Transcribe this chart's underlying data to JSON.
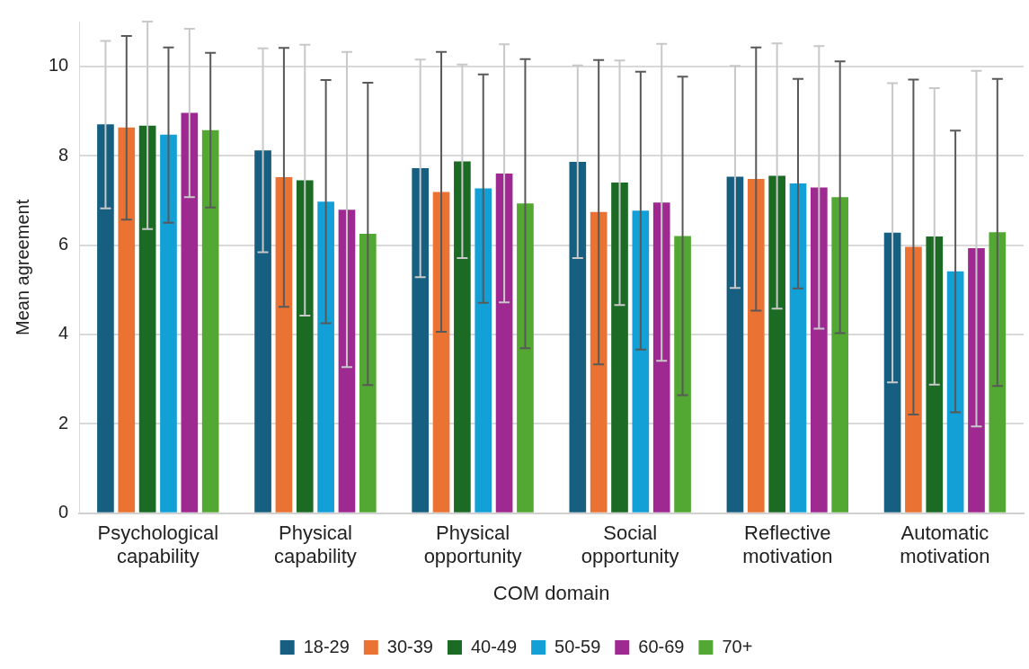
{
  "chart_data": {
    "type": "bar",
    "xlabel": "COM domain",
    "ylabel": "Mean agreement",
    "categories": [
      "Psychological capability",
      "Physical capability",
      "Physical opportunity",
      "Social opportunity",
      "Reflective motivation",
      "Automatic motivation"
    ],
    "ylim": [
      0,
      11
    ],
    "yticks": [
      0,
      2,
      4,
      6,
      8,
      10
    ],
    "grid": "y",
    "legend": "bottom",
    "series": [
      {
        "name": "18-29",
        "color": "#175f80",
        "values": [
          8.7,
          8.12,
          7.72,
          7.86,
          7.53,
          6.28
        ],
        "errors": [
          [
            6.82,
            10.57
          ],
          [
            5.84,
            10.4
          ],
          [
            5.28,
            10.15
          ],
          [
            5.71,
            10.02
          ],
          [
            5.04,
            10.01
          ],
          [
            2.93,
            9.62
          ]
        ]
      },
      {
        "name": "30-39",
        "color": "#ea7233",
        "values": [
          8.63,
          7.52,
          7.19,
          6.74,
          7.48,
          5.96
        ],
        "errors": [
          [
            6.57,
            10.68
          ],
          [
            4.62,
            10.41
          ],
          [
            4.06,
            10.32
          ],
          [
            3.33,
            10.14
          ],
          [
            4.53,
            10.42
          ],
          [
            2.21,
            9.7
          ]
        ]
      },
      {
        "name": "40-49",
        "color": "#1b6b24",
        "values": [
          8.67,
          7.45,
          7.87,
          7.4,
          7.55,
          6.19
        ],
        "errors": [
          [
            6.36,
            11.0
          ],
          [
            4.42,
            10.48
          ],
          [
            5.71,
            10.04
          ],
          [
            4.66,
            10.13
          ],
          [
            4.58,
            10.51
          ],
          [
            2.88,
            9.51
          ]
        ]
      },
      {
        "name": "50-59",
        "color": "#12a0d7",
        "values": [
          8.47,
          6.97,
          7.27,
          6.77,
          7.38,
          5.41
        ],
        "errors": [
          [
            6.5,
            10.42
          ],
          [
            4.25,
            9.69
          ],
          [
            4.71,
            9.82
          ],
          [
            3.66,
            9.88
          ],
          [
            5.03,
            9.72
          ],
          [
            2.26,
            8.56
          ]
        ]
      },
      {
        "name": "60-69",
        "color": "#9e2a91",
        "values": [
          8.96,
          6.79,
          7.6,
          6.95,
          7.29,
          5.93
        ],
        "errors": [
          [
            7.07,
            10.84
          ],
          [
            3.27,
            10.32
          ],
          [
            4.72,
            10.49
          ],
          [
            3.41,
            10.5
          ],
          [
            4.13,
            10.45
          ],
          [
            1.94,
            9.9
          ]
        ]
      },
      {
        "name": "70+",
        "color": "#52a832",
        "values": [
          8.57,
          6.25,
          6.93,
          6.2,
          7.07,
          6.29
        ],
        "errors": [
          [
            6.84,
            10.3
          ],
          [
            2.87,
            9.63
          ],
          [
            3.69,
            10.16
          ],
          [
            2.64,
            9.77
          ],
          [
            4.03,
            10.11
          ],
          [
            2.85,
            9.72
          ]
        ]
      }
    ]
  }
}
